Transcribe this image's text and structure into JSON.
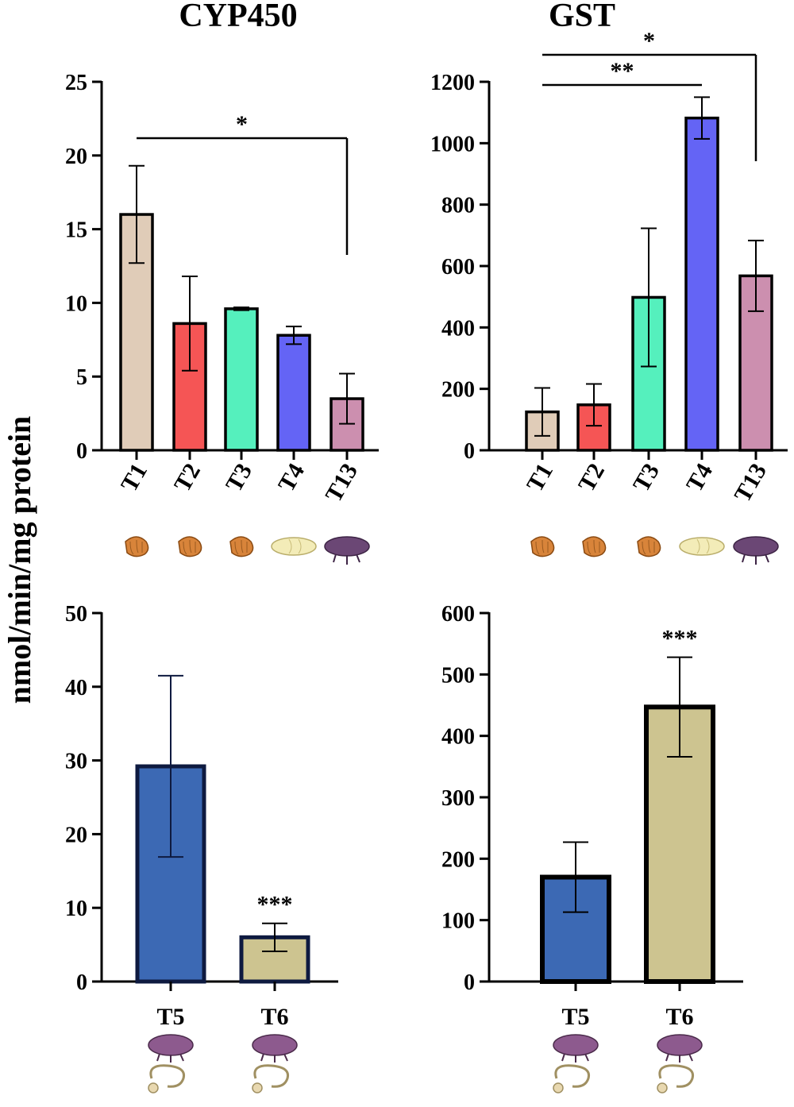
{
  "figure": {
    "ylabel": "nmol/min/mg protein",
    "titles": {
      "left": "CYP450",
      "right": "GST"
    }
  },
  "chart_data": [
    {
      "id": "cyp_top",
      "type": "bar",
      "title": "CYP450",
      "ylabel": "nmol/min/mg protein",
      "ylim": [
        0,
        25
      ],
      "yticks": [
        "0",
        "5",
        "10",
        "15",
        "20",
        "25"
      ],
      "categories": [
        "T1",
        "T2",
        "T3",
        "T4",
        "T13"
      ],
      "values": [
        16.0,
        8.6,
        9.6,
        7.8,
        3.5
      ],
      "errors": [
        3.3,
        3.2,
        0.1,
        0.6,
        1.7
      ],
      "colors": [
        "#e0ccb8",
        "#f55555",
        "#55f0bd",
        "#6464f5",
        "#cc8faf"
      ],
      "icons": [
        "larva-icon",
        "larva-icon",
        "larva-icon",
        "pupa-icon",
        "adult-beetle-icon"
      ],
      "significance": [
        {
          "from": "T1",
          "to": "T13",
          "label": "*"
        }
      ]
    },
    {
      "id": "gst_top",
      "type": "bar",
      "title": "GST",
      "ylabel": "nmol/min/mg protein",
      "ylim": [
        0,
        1200
      ],
      "yticks": [
        "0",
        "200",
        "400",
        "600",
        "800",
        "1000",
        "1200"
      ],
      "categories": [
        "T1",
        "T2",
        "T3",
        "T4",
        "T13"
      ],
      "values": [
        125,
        148,
        498,
        1082,
        568
      ],
      "errors": [
        78,
        68,
        225,
        68,
        115
      ],
      "colors": [
        "#e0ccb8",
        "#f55555",
        "#55f0bd",
        "#6464f5",
        "#cc8faf"
      ],
      "icons": [
        "larva-icon",
        "larva-icon",
        "larva-icon",
        "pupa-icon",
        "adult-beetle-icon"
      ],
      "significance": [
        {
          "from": "T1",
          "to": "T4",
          "label": "**"
        },
        {
          "from": "T1",
          "to": "T13",
          "label": "*"
        }
      ]
    },
    {
      "id": "cyp_bottom",
      "type": "bar",
      "title": "CYP450",
      "ylabel": "nmol/min/mg protein",
      "ylim": [
        0,
        50
      ],
      "yticks": [
        "0",
        "10",
        "20",
        "30",
        "40",
        "50"
      ],
      "categories": [
        "T5",
        "T6"
      ],
      "values": [
        29.2,
        6.0
      ],
      "errors": [
        12.3,
        1.9
      ],
      "colors": [
        "#3c69b4",
        "#cdc490"
      ],
      "edge": "#0e1a40",
      "icons": [
        "adult-beetle-gut-icon",
        "adult-beetle-gut-icon"
      ],
      "annotations": [
        {
          "category": "T6",
          "label": "***"
        }
      ]
    },
    {
      "id": "gst_bottom",
      "type": "bar",
      "title": "GST",
      "ylabel": "nmol/min/mg protein",
      "ylim": [
        0,
        600
      ],
      "yticks": [
        "0",
        "100",
        "200",
        "300",
        "400",
        "500",
        "600"
      ],
      "categories": [
        "T5",
        "T6"
      ],
      "values": [
        170,
        447
      ],
      "errors": [
        57,
        81
      ],
      "colors": [
        "#3c69b4",
        "#cdc490"
      ],
      "edge": "#000000",
      "icons": [
        "adult-beetle-gut-icon",
        "adult-beetle-gut-icon"
      ],
      "annotations": [
        {
          "category": "T6",
          "label": "***"
        }
      ]
    }
  ]
}
